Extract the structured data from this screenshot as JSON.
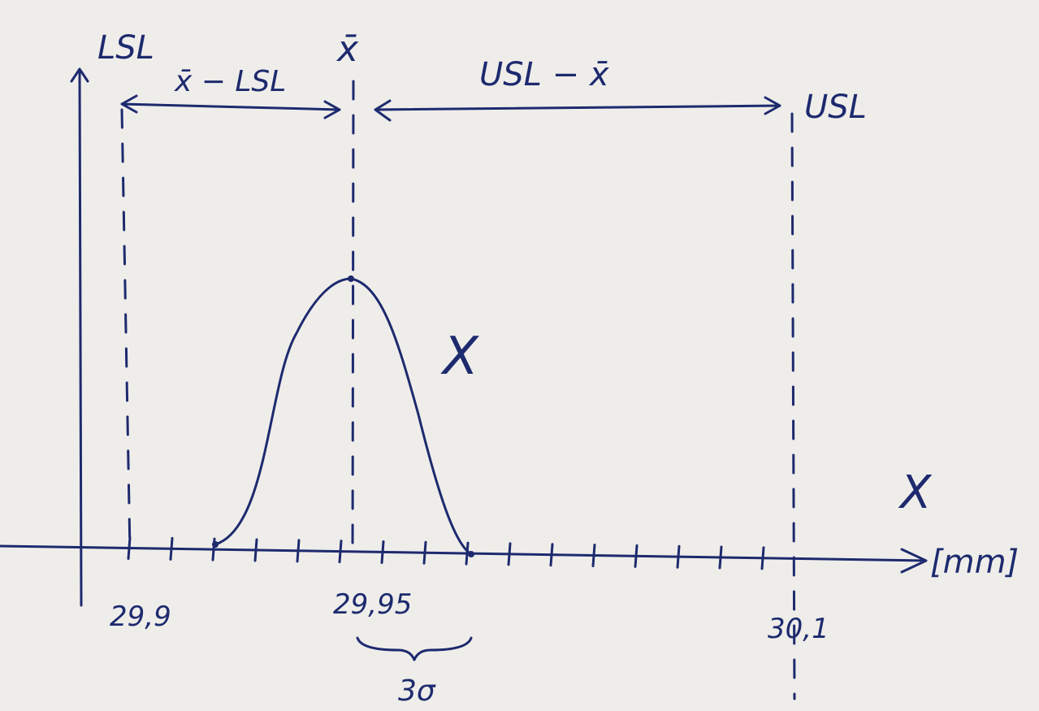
{
  "diagram": {
    "lsl_label": "LSL",
    "mean_label": "x̄",
    "left_span_label": "x̄ − LSL",
    "right_span_label": "USL − x̄",
    "usl_label": "USL",
    "curve_label": "X",
    "side_label": "X",
    "axis_unit": "[mm]",
    "lsl_value": "29,9",
    "mean_value": "29,95",
    "usl_value": "30,1",
    "spread_label": "3σ"
  }
}
